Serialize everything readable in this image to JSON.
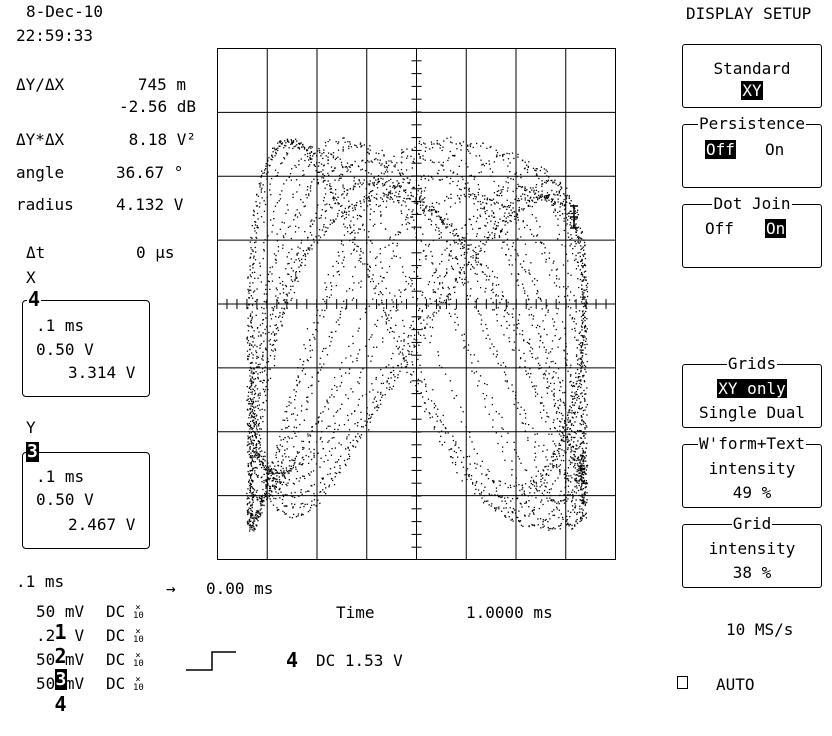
{
  "header": {
    "date": "8-Dec-10",
    "time": "22:59:33"
  },
  "measurements": {
    "dy_dx_label": "ΔY/ΔX",
    "dy_dx_value": "745 m",
    "dy_dx_db": "-2.56 dB",
    "dy_mult_dx_label": "ΔY*ΔX",
    "dy_mult_dx_value": "8.18 V²",
    "angle_label": "angle",
    "angle_value": "36.67 °",
    "radius_label": "radius",
    "radius_value": "4.132 V",
    "dt_label": "Δt",
    "dt_value": "0 μs"
  },
  "x_channel": {
    "label": "X",
    "number": "4",
    "timebase": ".1 ms",
    "volts_div": "0.50 V",
    "value": "3.314 V"
  },
  "y_channel": {
    "label": "Y",
    "number": "3",
    "timebase": ".1 ms",
    "volts_div": "0.50 V",
    "value": "2.467 V"
  },
  "menu": {
    "title": "DISPLAY SETUP",
    "standard": {
      "label": "Standard",
      "value": "XY"
    },
    "persistence": {
      "label": "Persistence",
      "off": "Off",
      "on": "On",
      "selected": "Off"
    },
    "dot_join": {
      "label": "Dot Join",
      "off": "Off",
      "on": "On",
      "selected": "On"
    },
    "grids": {
      "label": "Grids",
      "value": "XY only",
      "options": "Single Dual"
    },
    "wform_text": {
      "label": "W'form+Text",
      "line1": "intensity",
      "value": "49 %"
    },
    "grid_intensity": {
      "label": "Grid",
      "line1": "intensity",
      "value": "38 %"
    }
  },
  "bottom": {
    "timebase": ".1 ms",
    "delay_arrow": "→",
    "delay": "0.00 ms",
    "time_label": "Time",
    "time_value": "1.0000 ms",
    "sample_rate": "10 MS/s",
    "trigger_channel": "4",
    "trigger_info": "DC 1.53 V",
    "auto_label": "AUTO",
    "channels": [
      {
        "num": "1",
        "scale": "50 mV",
        "coupling": "DC",
        "probe": "10"
      },
      {
        "num": "2",
        "scale": ".2  V",
        "coupling": "DC",
        "probe": "10"
      },
      {
        "num": "3",
        "scale": "50 mV",
        "coupling": "DC",
        "probe": "10"
      },
      {
        "num": "4",
        "scale": "50 mV",
        "coupling": "DC",
        "probe": "10"
      }
    ]
  }
}
